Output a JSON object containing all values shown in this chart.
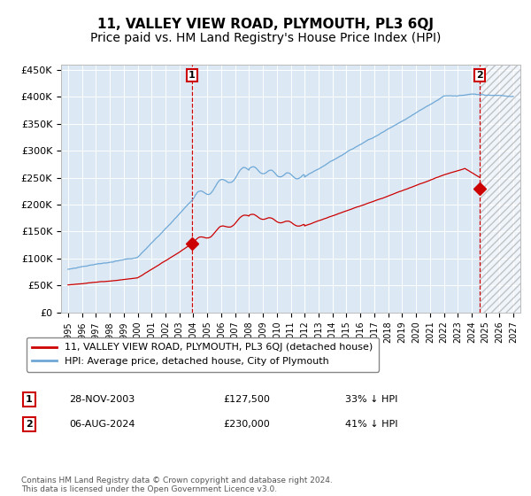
{
  "title": "11, VALLEY VIEW ROAD, PLYMOUTH, PL3 6QJ",
  "subtitle": "Price paid vs. HM Land Registry's House Price Index (HPI)",
  "x_start_year": 1995,
  "x_end_year": 2027,
  "ylim": [
    0,
    460000
  ],
  "yticks": [
    0,
    50000,
    100000,
    150000,
    200000,
    250000,
    300000,
    350000,
    400000,
    450000
  ],
  "ytick_labels": [
    "£0",
    "£50K",
    "£100K",
    "£150K",
    "£200K",
    "£250K",
    "£300K",
    "£350K",
    "£400K",
    "£450K"
  ],
  "hpi_color": "#6fa8d6",
  "price_color": "#cc0000",
  "marker_color": "#cc0000",
  "bg_color": "#dce9f5",
  "grid_color": "#ffffff",
  "vline_color": "#cc0000",
  "sale1_year": 2003.91,
  "sale1_price": 127500,
  "sale1_label": "1",
  "sale2_year": 2024.59,
  "sale2_price": 230000,
  "sale2_label": "2",
  "sale1_date": "28-NOV-2003",
  "sale1_amount": "£127,500",
  "sale1_hpi": "33% ↓ HPI",
  "sale2_date": "06-AUG-2024",
  "sale2_amount": "£230,000",
  "sale2_hpi": "41% ↓ HPI",
  "legend_line1": "11, VALLEY VIEW ROAD, PLYMOUTH, PL3 6QJ (detached house)",
  "legend_line2": "HPI: Average price, detached house, City of Plymouth",
  "footer": "Contains HM Land Registry data © Crown copyright and database right 2024.\nThis data is licensed under the Open Government Licence v3.0.",
  "future_cutoff_year": 2024.59,
  "title_fontsize": 11,
  "subtitle_fontsize": 10,
  "xlim_left": 1994.5,
  "xlim_right": 2027.5
}
